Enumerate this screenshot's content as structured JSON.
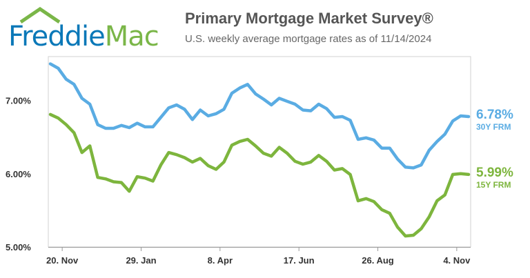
{
  "header": {
    "logo_word_1": "Freddie",
    "logo_word_2": "Mac",
    "title": "Primary Mortgage Market Survey®",
    "subtitle": "U.S. weekly average mortgage rates as of 11/14/2024"
  },
  "colors": {
    "brand_blue": "#0a78b8",
    "brand_green": "#7ab648",
    "series_30y": "#5aace3",
    "series_15y": "#7db53d"
  },
  "chart_data": {
    "type": "line",
    "ylim": [
      5.0,
      7.6
    ],
    "yticks": [
      5.0,
      6.0,
      7.0
    ],
    "ytick_labels": [
      "5.00%",
      "6.00%",
      "7.00%"
    ],
    "xtick_labels": [
      "20. Nov",
      "29. Jan",
      "8. Apr",
      "17. Jun",
      "26. Aug",
      "4. Nov"
    ],
    "xtick_index": [
      1.5,
      11.5,
      21.5,
      31.5,
      41.5,
      51.5
    ],
    "grid": false,
    "series": [
      {
        "name": "30Y FRM",
        "end_label": "6.78%",
        "values": [
          7.5,
          7.44,
          7.29,
          7.22,
          7.03,
          6.95,
          6.67,
          6.62,
          6.62,
          6.66,
          6.63,
          6.69,
          6.64,
          6.64,
          6.77,
          6.9,
          6.94,
          6.88,
          6.74,
          6.87,
          6.79,
          6.82,
          6.88,
          7.1,
          7.17,
          7.22,
          7.09,
          7.02,
          6.94,
          7.03,
          6.99,
          6.95,
          6.87,
          6.86,
          6.95,
          6.89,
          6.77,
          6.78,
          6.73,
          6.47,
          6.49,
          6.46,
          6.35,
          6.35,
          6.2,
          6.09,
          6.08,
          6.12,
          6.32,
          6.44,
          6.54,
          6.72,
          6.79,
          6.78
        ]
      },
      {
        "name": "15Y FRM",
        "end_label": "5.99%",
        "values": [
          6.81,
          6.76,
          6.67,
          6.56,
          6.29,
          6.38,
          5.95,
          5.93,
          5.89,
          5.88,
          5.76,
          5.96,
          5.94,
          5.9,
          6.12,
          6.29,
          6.26,
          6.22,
          6.16,
          6.21,
          6.11,
          6.06,
          6.16,
          6.39,
          6.44,
          6.47,
          6.38,
          6.28,
          6.24,
          6.36,
          6.28,
          6.17,
          6.13,
          6.16,
          6.25,
          6.17,
          6.05,
          6.07,
          5.99,
          5.63,
          5.66,
          5.62,
          5.51,
          5.46,
          5.27,
          5.15,
          5.16,
          5.25,
          5.41,
          5.63,
          5.71,
          5.99,
          6.0,
          5.99
        ]
      }
    ]
  }
}
